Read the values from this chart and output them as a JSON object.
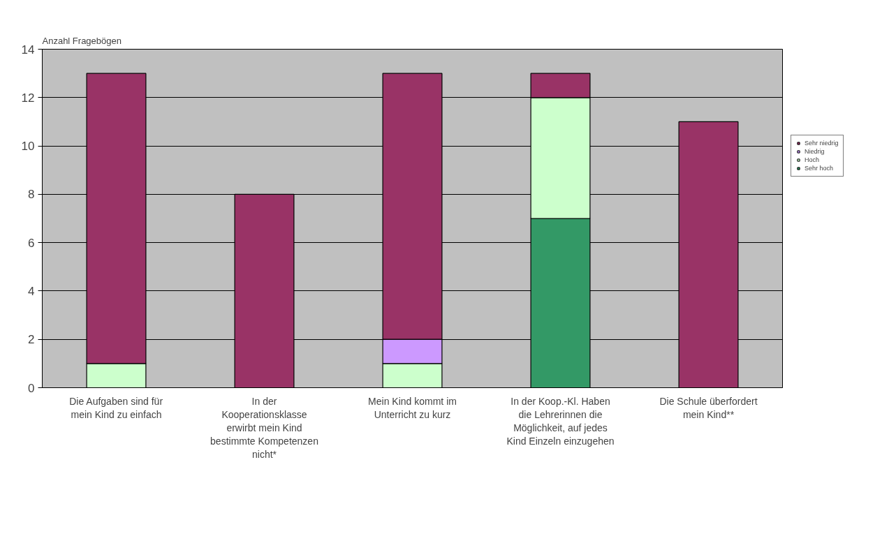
{
  "chart_data": {
    "type": "bar",
    "stacked": true,
    "ylabel": "Anzahl Fragebögen",
    "categories": [
      "Die Aufgaben sind für mein Kind zu einfach",
      "In der Kooperationsklasse erwirbt mein Kind bestimmte Kompetenzen nicht*",
      "Mein Kind kommt im Unterricht zu kurz",
      "In der Koop.-Kl. Haben die Lehrerinnen die Möglichkeit, auf jedes Kind Einzeln einzugehen",
      "Die Schule überfordert mein Kind**"
    ],
    "series": [
      {
        "name": "Sehr hoch",
        "color": "#339966",
        "values": [
          0,
          0,
          0,
          7,
          0
        ]
      },
      {
        "name": "Hoch",
        "color": "#ccffcc",
        "values": [
          1,
          0,
          1,
          5,
          0
        ]
      },
      {
        "name": "Niedrig",
        "color": "#cc99ff",
        "values": [
          0,
          0,
          1,
          0,
          0
        ]
      },
      {
        "name": "Sehr niedrig",
        "color": "#993366",
        "values": [
          12,
          8,
          11,
          1,
          11
        ]
      }
    ],
    "ylim": [
      0,
      14
    ],
    "yticks": [
      0,
      2,
      4,
      6,
      8,
      10,
      12,
      14
    ],
    "grid": "y",
    "legend": "right"
  }
}
